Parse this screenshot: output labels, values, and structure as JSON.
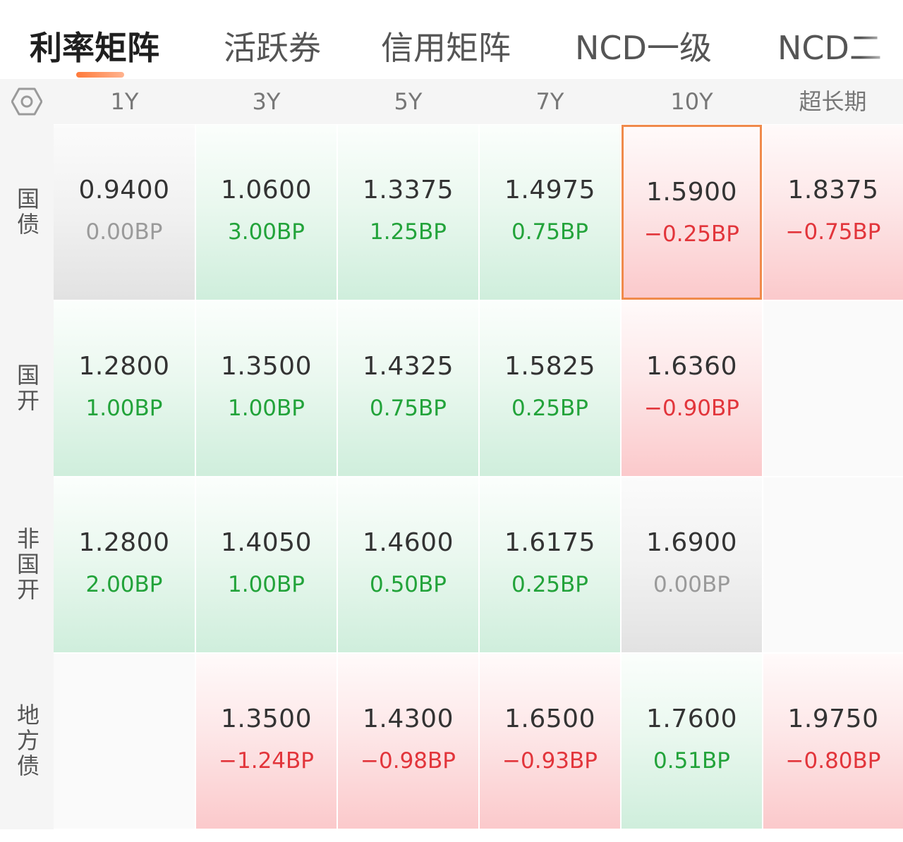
{
  "tabs": [
    {
      "label": "利率矩阵",
      "active": true
    },
    {
      "label": "活跃券",
      "active": false
    },
    {
      "label": "信用矩阵",
      "active": false
    },
    {
      "label": "NCD一级",
      "active": false
    },
    {
      "label": "NCD二",
      "active": false
    }
  ],
  "header": {
    "settings_icon": "gear-hexagon-icon",
    "columns": [
      "1Y",
      "3Y",
      "5Y",
      "7Y",
      "10Y",
      "超长期"
    ]
  },
  "rows": [
    {
      "label": "国债",
      "cells": [
        {
          "value": "0.9400",
          "change": "0.00BP",
          "trend": "flat"
        },
        {
          "value": "1.0600",
          "change": "3.00BP",
          "trend": "up"
        },
        {
          "value": "1.3375",
          "change": "1.25BP",
          "trend": "up"
        },
        {
          "value": "1.4975",
          "change": "0.75BP",
          "trend": "up"
        },
        {
          "value": "1.5900",
          "change": "−0.25BP",
          "trend": "down",
          "selected": true
        },
        {
          "value": "1.8375",
          "change": "−0.75BP",
          "trend": "down"
        }
      ]
    },
    {
      "label": "国开",
      "cells": [
        {
          "value": "1.2800",
          "change": "1.00BP",
          "trend": "up"
        },
        {
          "value": "1.3500",
          "change": "1.00BP",
          "trend": "up"
        },
        {
          "value": "1.4325",
          "change": "0.75BP",
          "trend": "up"
        },
        {
          "value": "1.5825",
          "change": "0.25BP",
          "trend": "up"
        },
        {
          "value": "1.6360",
          "change": "−0.90BP",
          "trend": "down"
        },
        null
      ]
    },
    {
      "label": "非国开",
      "cells": [
        {
          "value": "1.2800",
          "change": "2.00BP",
          "trend": "up"
        },
        {
          "value": "1.4050",
          "change": "1.00BP",
          "trend": "up"
        },
        {
          "value": "1.4600",
          "change": "0.50BP",
          "trend": "up"
        },
        {
          "value": "1.6175",
          "change": "0.25BP",
          "trend": "up"
        },
        {
          "value": "1.6900",
          "change": "0.00BP",
          "trend": "flat"
        },
        null
      ]
    },
    {
      "label": "地方债",
      "cells": [
        null,
        {
          "value": "1.3500",
          "change": "−1.24BP",
          "trend": "down"
        },
        {
          "value": "1.4300",
          "change": "−0.98BP",
          "trend": "down"
        },
        {
          "value": "1.6500",
          "change": "−0.93BP",
          "trend": "down"
        },
        {
          "value": "1.7600",
          "change": "0.51BP",
          "trend": "up"
        },
        {
          "value": "1.9750",
          "change": "−0.80BP",
          "trend": "down"
        }
      ]
    }
  ],
  "colors": {
    "up": "#22a33a",
    "down": "#e2353b",
    "flat": "#9a9a9a",
    "selected_border": "#f08a4b",
    "tab_indicator": "#ff7a3a"
  }
}
